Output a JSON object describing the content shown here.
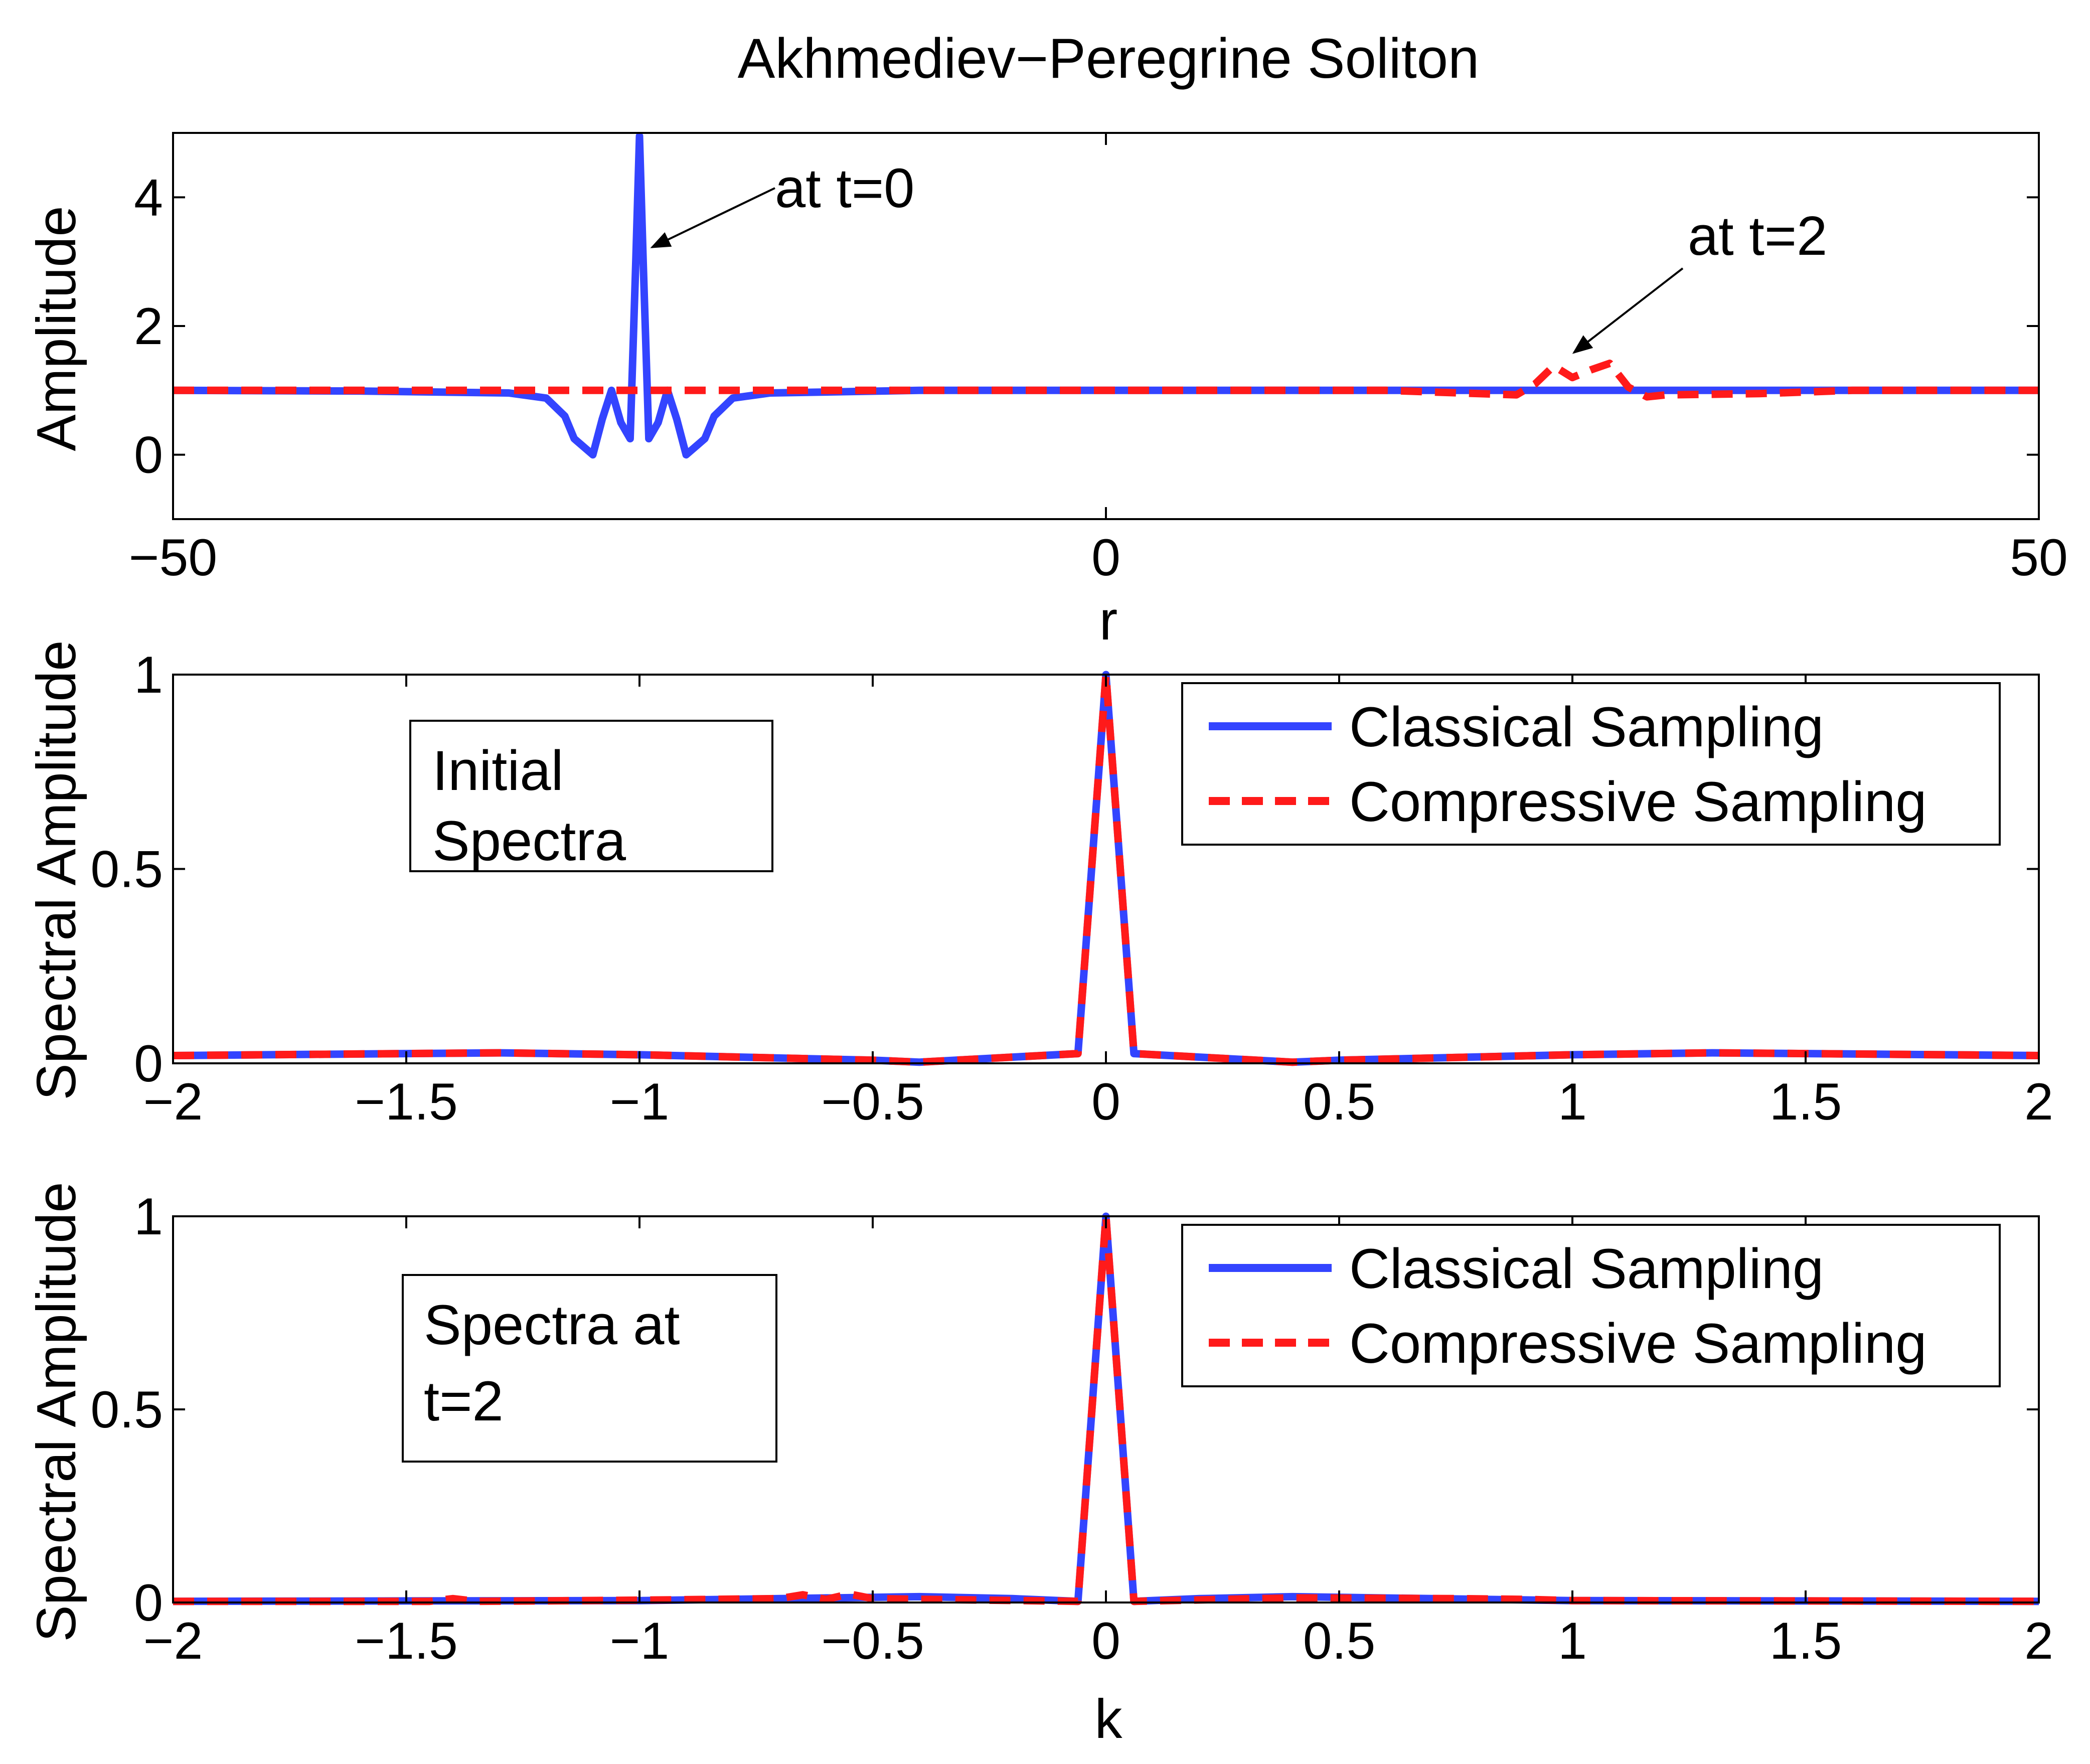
{
  "chart_data": [
    {
      "type": "line",
      "title": "Akhmediev−Peregrine Soliton",
      "xlabel": "r",
      "ylabel": "Amplitude",
      "xlim": [
        -50,
        50
      ],
      "ylim": [
        -1,
        5
      ],
      "xticks": [
        -50,
        0,
        50
      ],
      "xtick_labels": [
        "−50",
        "0",
        "50"
      ],
      "yticks": [
        0,
        2,
        4
      ],
      "ytick_labels": [
        "0",
        "2",
        "4"
      ],
      "annotations": [
        {
          "text": "at t=0",
          "points_to": {
            "x": -25,
            "y": 3.2
          }
        },
        {
          "text": "at t=2",
          "points_to": {
            "x": 25,
            "y": 1.6
          }
        }
      ],
      "series": [
        {
          "name": "at t=0",
          "color": "#3344ff",
          "style": "solid",
          "x": [
            -50,
            -40,
            -32,
            -30,
            -29,
            -28.5,
            -27.5,
            -27,
            -26.5,
            -26,
            -25.5,
            -25.2,
            -25,
            -24.8,
            -24.5,
            -24,
            -23.5,
            -23,
            -22.5,
            -21.5,
            -21,
            -20,
            -18,
            -10,
            0,
            10,
            50
          ],
          "y": [
            1,
            0.99,
            0.96,
            0.88,
            0.6,
            0.25,
            0.0,
            0.55,
            1.0,
            0.5,
            0.25,
            3.0,
            4.95,
            3.0,
            0.25,
            0.5,
            1.0,
            0.55,
            0.0,
            0.25,
            0.6,
            0.88,
            0.96,
            1.0,
            1.0,
            1.0,
            1.0
          ]
        },
        {
          "name": "at t=2",
          "color": "#ff1a1a",
          "style": "dashed",
          "x": [
            -50,
            0,
            15,
            20,
            22,
            23,
            24,
            25,
            26,
            27,
            28,
            29,
            30,
            35,
            40,
            50
          ],
          "y": [
            1,
            1,
            1,
            0.95,
            0.93,
            1.1,
            1.38,
            1.2,
            1.32,
            1.42,
            1.05,
            0.9,
            0.93,
            0.95,
            1.0,
            1.0
          ]
        }
      ]
    },
    {
      "type": "line",
      "title": "",
      "xlabel": "",
      "ylabel": "Spectral Amplitude",
      "xlim": [
        -2,
        2
      ],
      "ylim": [
        0,
        1
      ],
      "xticks": [
        -2,
        -1.5,
        -1,
        -0.5,
        0,
        0.5,
        1,
        1.5,
        2
      ],
      "xtick_labels": [
        "−2",
        "−1.5",
        "−1",
        "−0.5",
        "0",
        "0.5",
        "1",
        "1.5",
        "2"
      ],
      "yticks": [
        0,
        0.5,
        1
      ],
      "ytick_labels": [
        "0",
        "0.5",
        "1"
      ],
      "textbox": [
        "Initial",
        "Spectra"
      ],
      "legend": {
        "position": "top-right",
        "entries": [
          "Classical Sampling",
          "Compressive Sampling"
        ]
      },
      "series": [
        {
          "name": "Classical Sampling",
          "color": "#3344ff",
          "style": "solid",
          "x": [
            -2,
            -1.5,
            -1.3,
            -1,
            -0.5,
            -0.4,
            -0.06,
            0,
            0.06,
            0.4,
            0.5,
            1,
            1.3,
            1.5,
            2
          ],
          "y": [
            0.02,
            0.025,
            0.027,
            0.022,
            0.008,
            0.003,
            0.025,
            1.0,
            0.025,
            0.003,
            0.008,
            0.022,
            0.027,
            0.025,
            0.02
          ]
        },
        {
          "name": "Compressive Sampling",
          "color": "#ff1a1a",
          "style": "dashed",
          "x": [
            -2,
            -1.5,
            -1.3,
            -1,
            -0.5,
            -0.4,
            -0.06,
            0,
            0.06,
            0.4,
            0.5,
            1,
            1.3,
            1.5,
            2
          ],
          "y": [
            0.02,
            0.025,
            0.027,
            0.022,
            0.008,
            0.003,
            0.025,
            1.0,
            0.025,
            0.003,
            0.008,
            0.022,
            0.027,
            0.025,
            0.02
          ]
        }
      ]
    },
    {
      "type": "line",
      "title": "",
      "xlabel": "k",
      "ylabel": "Spectral Amplitude",
      "xlim": [
        -2,
        2
      ],
      "ylim": [
        0,
        1
      ],
      "xticks": [
        -2,
        -1.5,
        -1,
        -0.5,
        0,
        0.5,
        1,
        1.5,
        2
      ],
      "xtick_labels": [
        "−2",
        "−1.5",
        "−1",
        "−0.5",
        "0",
        "0.5",
        "1",
        "1.5",
        "2"
      ],
      "yticks": [
        0,
        0.5,
        1
      ],
      "ytick_labels": [
        "0",
        "0.5",
        "1"
      ],
      "textbox": [
        "Spectra at",
        "t=2"
      ],
      "legend": {
        "position": "top-right",
        "entries": [
          "Classical Sampling",
          "Compressive Sampling"
        ]
      },
      "series": [
        {
          "name": "Classical Sampling",
          "color": "#3344ff",
          "style": "solid",
          "x": [
            -2,
            -1.5,
            -1,
            -0.7,
            -0.4,
            -0.2,
            -0.06,
            0,
            0.06,
            0.2,
            0.4,
            0.7,
            1,
            1.5,
            2
          ],
          "y": [
            0.003,
            0.004,
            0.005,
            0.01,
            0.015,
            0.01,
            0.003,
            1.0,
            0.003,
            0.01,
            0.015,
            0.01,
            0.005,
            0.004,
            0.003
          ]
        },
        {
          "name": "Compressive Sampling",
          "color": "#ff1a1a",
          "style": "dashed",
          "x": [
            -2,
            -1.45,
            -1.4,
            -1.35,
            -1,
            -0.7,
            -0.65,
            -0.6,
            -0.55,
            -0.5,
            -0.06,
            0,
            0.06,
            0.4,
            0.75,
            0.9,
            1,
            1.5,
            2
          ],
          "y": [
            0.003,
            0.003,
            0.01,
            0.003,
            0.006,
            0.01,
            0.02,
            0.008,
            0.022,
            0.01,
            0.003,
            1.0,
            0.003,
            0.012,
            0.01,
            0.008,
            0.005,
            0.004,
            0.003
          ]
        }
      ]
    }
  ]
}
